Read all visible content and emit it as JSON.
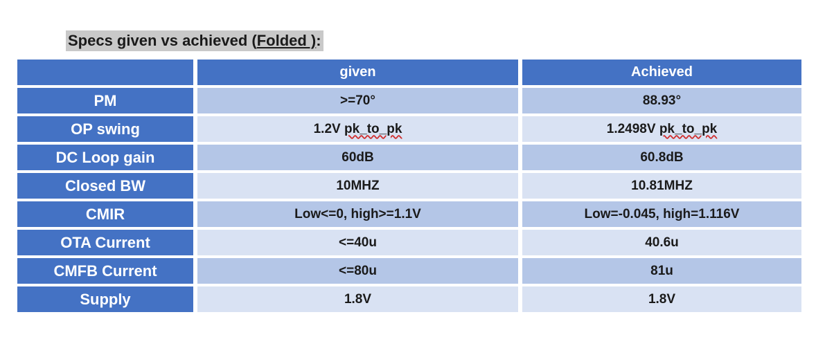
{
  "title": {
    "prefix": "Specs given vs achieved (",
    "folded": "Folded )",
    "suffix": ":"
  },
  "columns": [
    "",
    "given",
    "Achieved"
  ],
  "rows": [
    {
      "label": "PM",
      "given": ">=70°",
      "achieved": "88.93°"
    },
    {
      "label": "OP swing",
      "given_value": "1.2V ",
      "given_unit": "pk_to_pk",
      "achieved_value": "1.2498V ",
      "achieved_unit": "pk_to_pk"
    },
    {
      "label": "DC Loop gain",
      "given": "60dB",
      "achieved": "60.8dB"
    },
    {
      "label": "Closed BW",
      "given": "10MHZ",
      "achieved": "10.81MHZ"
    },
    {
      "label": "CMIR",
      "given": "Low<=0, high>=1.1V",
      "achieved": "Low=-0.045, high=1.116V"
    },
    {
      "label": "OTA Current",
      "given": "<=40u",
      "achieved": "40.6u"
    },
    {
      "label": "CMFB Current",
      "given": "<=80u",
      "achieved": "81u"
    },
    {
      "label": "Supply",
      "given": "1.8V",
      "achieved": "1.8V"
    }
  ],
  "colors": {
    "header": "#4472c4",
    "row_odd": "#b4c6e7",
    "row_even": "#d9e2f3",
    "title_highlight": "#c9c9c9"
  }
}
